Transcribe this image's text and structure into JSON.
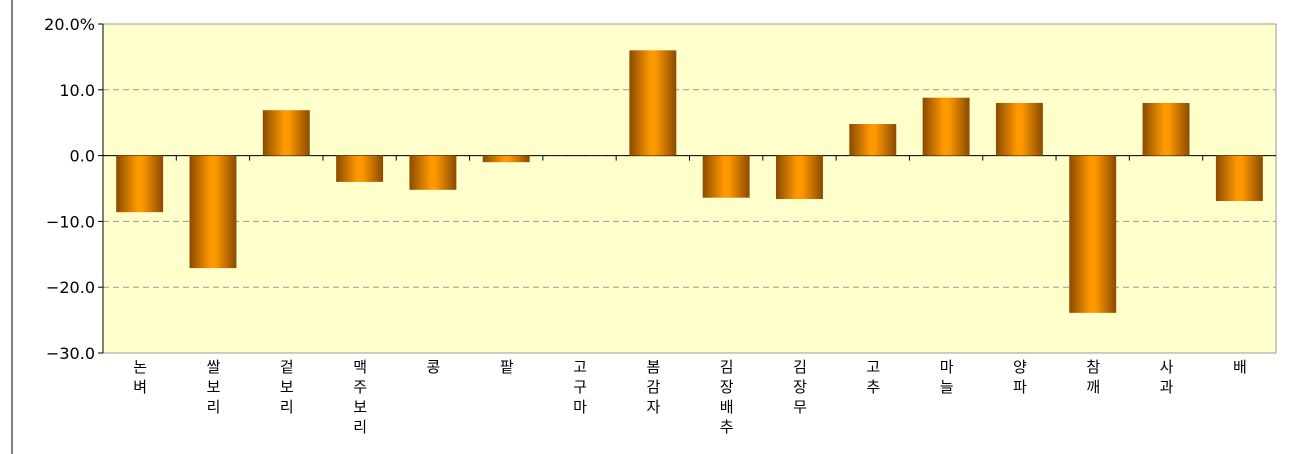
{
  "chart_data": {
    "type": "bar",
    "categories": [
      "논벼",
      "쌀보리",
      "겉보리",
      "맥주보리",
      "콩",
      "팥",
      "고구마",
      "봄감자",
      "김장배추",
      "김장무",
      "고추",
      "마늘",
      "양파",
      "참깨",
      "사과",
      "배"
    ],
    "values": [
      -8.6,
      -17.1,
      6.9,
      -4.0,
      -5.2,
      -1.0,
      0,
      16.0,
      -6.4,
      -6.6,
      4.8,
      8.8,
      8.0,
      -23.9,
      8.0,
      -6.9
    ],
    "color": "#ff9900",
    "ylim": [
      -30,
      20
    ],
    "yticks": [
      {
        "value": -30,
        "label": "−30.0"
      },
      {
        "value": -20,
        "label": "−20.0"
      },
      {
        "value": -10,
        "label": "−10.0"
      },
      {
        "value": 0,
        "label": "0.0"
      },
      {
        "value": 10,
        "label": "10.0"
      },
      {
        "value": 20,
        "label": "20.0%"
      }
    ],
    "grid": true
  }
}
